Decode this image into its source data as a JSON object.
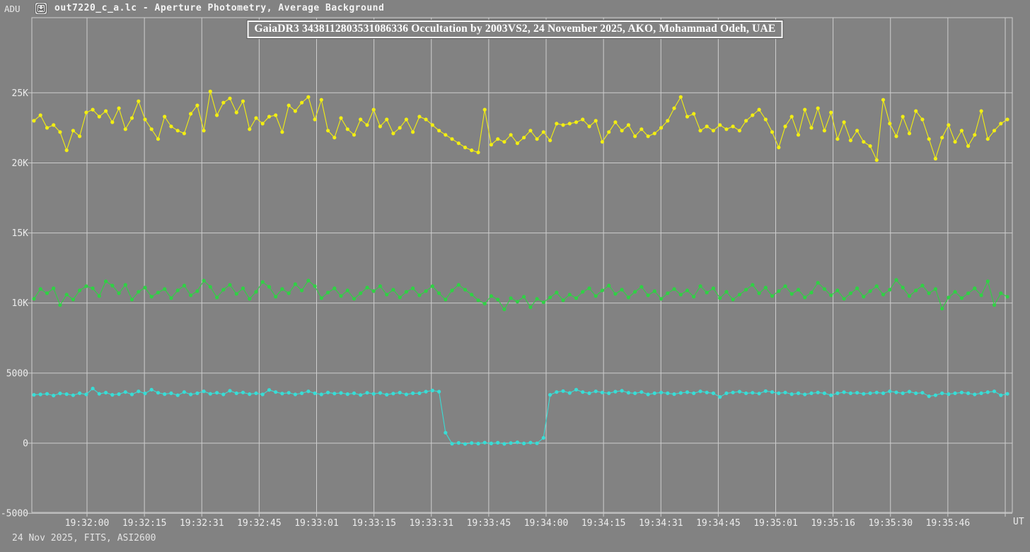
{
  "window": {
    "y_axis_unit": "ADU",
    "title": "out7220_c_a.lc - Aperture Photometry, Average Background"
  },
  "footer": {
    "info": "24 Nov 2025, FITS, ASI2600",
    "x_axis_unit": "UT"
  },
  "colors": {
    "background": "#828282",
    "grid": "#cdcdcd",
    "tick_text": "#ececec",
    "title_text": "#ffffff",
    "yellow_series": "#f2ee12",
    "green_series": "#2fd244",
    "cyan_series": "#38ddd6"
  },
  "chart_data": {
    "type": "line",
    "title": "GaiaDR3 3438112803531086336 Occultation by 2003VS2, 24 November 2025, AKO, Mohammad Odeh, UAE",
    "xlabel": "UT",
    "ylabel": "ADU",
    "grid": true,
    "legend": "none",
    "ylim": [
      -4940,
      30360
    ],
    "y_ticks": [
      {
        "value": 25000,
        "label": "25K"
      },
      {
        "value": 20000,
        "label": "20K"
      },
      {
        "value": 15000,
        "label": "15K"
      },
      {
        "value": 10000,
        "label": "10K"
      },
      {
        "value": 5000,
        "label": "5000"
      },
      {
        "value": 0,
        "label": "0"
      },
      {
        "value": -5000,
        "label": "-5000"
      }
    ],
    "x_ticks": [
      "19:32:00",
      "19:32:15",
      "19:32:31",
      "19:32:45",
      "19:33:01",
      "19:33:15",
      "19:33:31",
      "19:33:45",
      "19:34:00",
      "19:34:15",
      "19:34:31",
      "19:34:45",
      "19:35:01",
      "19:35:16",
      "19:35:30",
      "19:35:46",
      ""
    ],
    "series": [
      {
        "name": "yellow",
        "color": "#f2ee12",
        "values": [
          23000,
          23400,
          22500,
          22700,
          22200,
          20900,
          22300,
          21900,
          23600,
          23800,
          23300,
          23700,
          22900,
          23900,
          22400,
          23200,
          24400,
          23100,
          22400,
          21700,
          23300,
          22600,
          22300,
          22100,
          23500,
          24100,
          22300,
          25100,
          23400,
          24300,
          24600,
          23600,
          24400,
          22400,
          23200,
          22800,
          23300,
          23400,
          22200,
          24100,
          23700,
          24300,
          24700,
          23100,
          24500,
          22300,
          21800,
          23200,
          22400,
          22000,
          23100,
          22700,
          23800,
          22600,
          23100,
          22100,
          22500,
          23100,
          22200,
          23300,
          23100,
          22700,
          22300,
          22000,
          21700,
          21400,
          21100,
          20900,
          20750,
          23800,
          21300,
          21700,
          21500,
          22000,
          21400,
          21800,
          22300,
          21700,
          22200,
          21600,
          22800,
          22700,
          22800,
          22900,
          23100,
          22600,
          23000,
          21500,
          22200,
          22900,
          22300,
          22700,
          21900,
          22400,
          21900,
          22100,
          22500,
          23000,
          23900,
          24700,
          23300,
          23500,
          22300,
          22600,
          22300,
          22700,
          22400,
          22600,
          22300,
          23000,
          23400,
          23800,
          23100,
          22200,
          21100,
          22600,
          23300,
          22000,
          23800,
          22500,
          23900,
          22300,
          23600,
          21700,
          22900,
          21600,
          22300,
          21500,
          21200,
          20200,
          24500,
          22800,
          21900,
          23300,
          22100,
          23700,
          23100,
          21700,
          20300,
          21800,
          22700,
          21500,
          22300,
          21200,
          22000,
          23700,
          21700,
          22300,
          22800,
          23100
        ]
      },
      {
        "name": "green",
        "color": "#2fd244",
        "values": [
          10300,
          11000,
          10700,
          11050,
          9850,
          10600,
          10250,
          10900,
          11200,
          11050,
          10500,
          11550,
          11250,
          10700,
          11300,
          10250,
          10800,
          11100,
          10450,
          10750,
          11000,
          10350,
          10900,
          11250,
          10550,
          10850,
          11600,
          11150,
          10400,
          10950,
          11300,
          10650,
          11050,
          10300,
          10800,
          11500,
          11150,
          10450,
          11000,
          10700,
          11350,
          10900,
          11600,
          11200,
          10350,
          10750,
          11050,
          10500,
          10900,
          10300,
          10700,
          11100,
          10850,
          11200,
          10600,
          10950,
          10400,
          10800,
          11050,
          10550,
          10850,
          11200,
          10700,
          10250,
          10900,
          11300,
          10950,
          10600,
          10200,
          9950,
          10500,
          10250,
          9550,
          10350,
          10100,
          10450,
          9700,
          10300,
          10050,
          10400,
          10750,
          10200,
          10600,
          10350,
          10800,
          11050,
          10500,
          10900,
          11250,
          10650,
          10950,
          10400,
          10800,
          11150,
          10550,
          10850,
          10300,
          10700,
          11000,
          10600,
          10900,
          10450,
          11200,
          10750,
          11050,
          10350,
          10800,
          10250,
          10600,
          10950,
          11300,
          10700,
          11100,
          10500,
          10850,
          11200,
          10650,
          10950,
          10400,
          10750,
          11450,
          11000,
          10550,
          10900,
          10300,
          10700,
          11050,
          10450,
          10850,
          11200,
          10600,
          10950,
          11650,
          11100,
          10500,
          10900,
          11250,
          10700,
          11000,
          9600,
          10400,
          10800,
          10350,
          10700,
          11050,
          10550,
          11550,
          9850,
          10700,
          10450
        ]
      },
      {
        "name": "cyan",
        "color": "#38ddd6",
        "values": [
          3450,
          3480,
          3520,
          3400,
          3550,
          3500,
          3420,
          3560,
          3480,
          3900,
          3520,
          3610,
          3450,
          3500,
          3650,
          3480,
          3700,
          3550,
          3820,
          3600,
          3500,
          3560,
          3420,
          3650,
          3480,
          3560,
          3700,
          3520,
          3600,
          3480,
          3740,
          3560,
          3620,
          3500,
          3560,
          3480,
          3800,
          3650,
          3540,
          3600,
          3480,
          3560,
          3700,
          3560,
          3480,
          3620,
          3540,
          3580,
          3500,
          3560,
          3440,
          3600,
          3520,
          3580,
          3460,
          3540,
          3610,
          3480,
          3560,
          3560,
          3680,
          3760,
          3680,
          750,
          -40,
          20,
          -60,
          10,
          -30,
          40,
          -20,
          30,
          -50,
          10,
          60,
          -20,
          40,
          -10,
          380,
          3450,
          3650,
          3720,
          3580,
          3820,
          3650,
          3560,
          3700,
          3620,
          3560,
          3680,
          3740,
          3600,
          3560,
          3650,
          3480,
          3560,
          3620,
          3560,
          3500,
          3580,
          3640,
          3560,
          3700,
          3620,
          3560,
          3300,
          3560,
          3620,
          3680,
          3560,
          3600,
          3540,
          3720,
          3650,
          3560,
          3620,
          3500,
          3560,
          3480,
          3560,
          3620,
          3560,
          3420,
          3560,
          3640,
          3560,
          3600,
          3520,
          3560,
          3620,
          3560,
          3700,
          3630,
          3560,
          3680,
          3560,
          3600,
          3350,
          3420,
          3560,
          3500,
          3560,
          3620,
          3560,
          3480,
          3560,
          3640,
          3700,
          3420,
          3520
        ]
      }
    ]
  }
}
